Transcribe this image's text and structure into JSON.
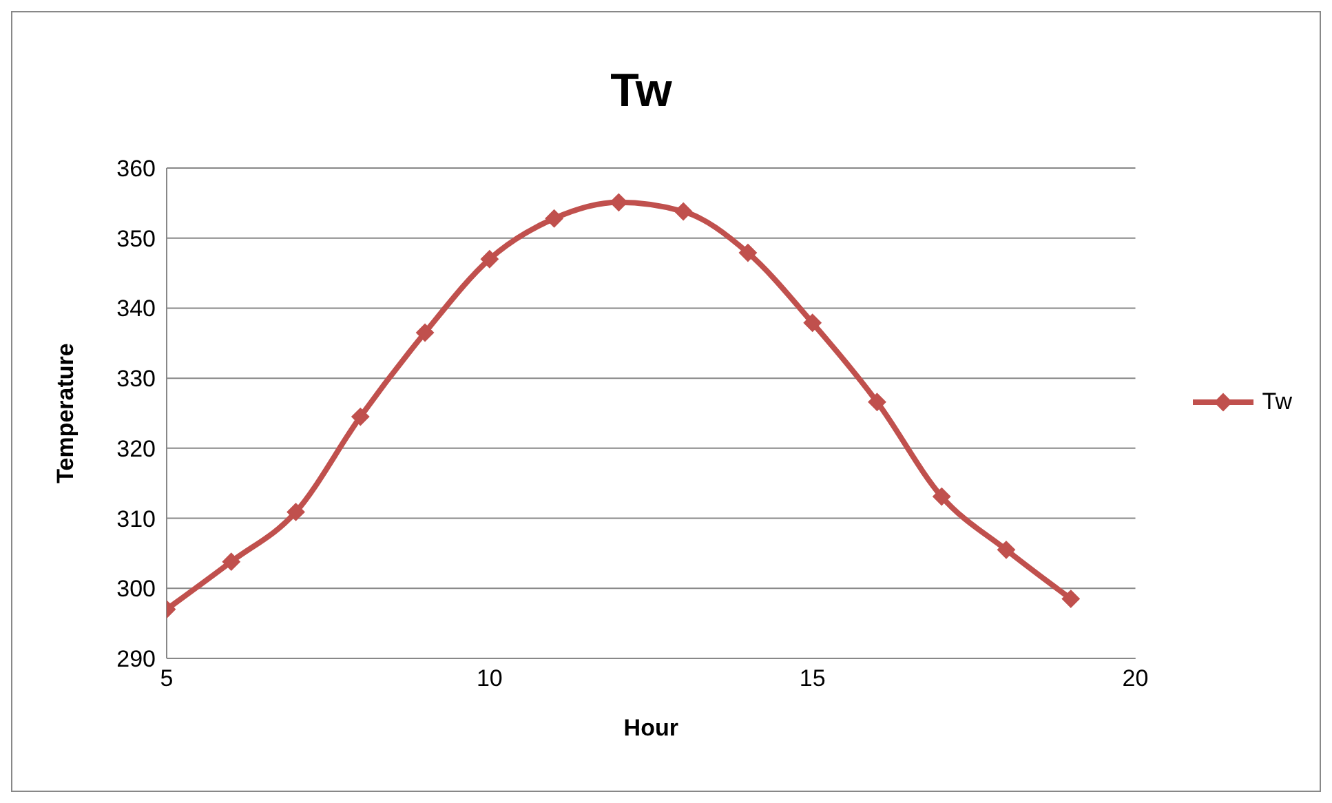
{
  "chart_data": {
    "type": "line",
    "title": "Tw",
    "xlabel": "Hour",
    "ylabel": "Temperature",
    "x": [
      5,
      6,
      7,
      8,
      9,
      10,
      11,
      12,
      13,
      14,
      15,
      16,
      17,
      18,
      19
    ],
    "series": [
      {
        "name": "Tw",
        "color": "#c0504d",
        "values": [
          297,
          303.8,
          310.9,
          324.5,
          336.5,
          347,
          352.8,
          355.1,
          353.8,
          347.9,
          337.9,
          326.6,
          313.1,
          305.5,
          298.5
        ]
      }
    ],
    "xlim": [
      5,
      20
    ],
    "xticks": [
      5,
      10,
      15,
      20
    ],
    "ylim": [
      290,
      360
    ],
    "yticks": [
      290,
      300,
      310,
      320,
      330,
      340,
      350,
      360
    ],
    "grid": "y",
    "legend": "right",
    "marker": "diamond",
    "line_style": "solid"
  }
}
